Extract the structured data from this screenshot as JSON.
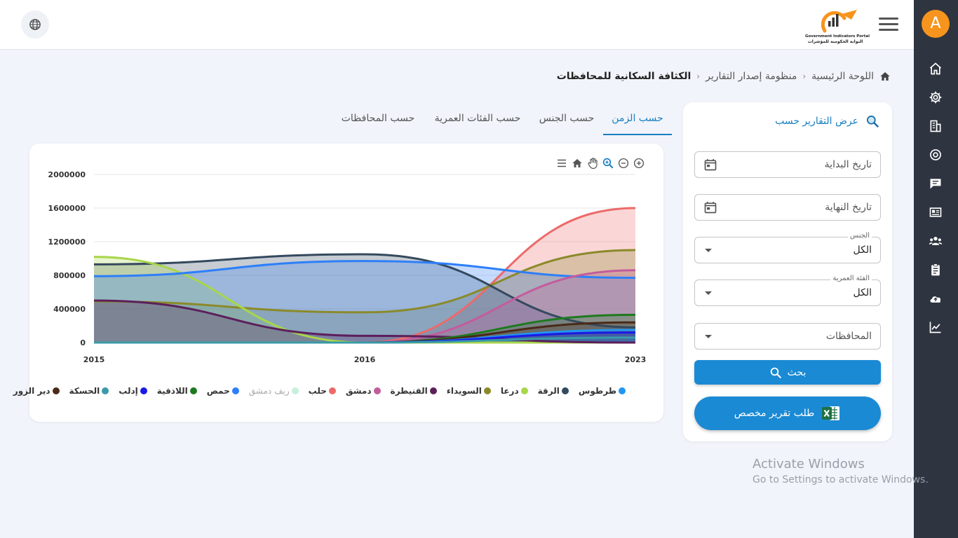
{
  "user": {
    "avatar_letter": "A"
  },
  "logo": {
    "name_en": "Government Indicators Portal",
    "name_ar": "البوابة الحكومية للمؤشرات"
  },
  "sidebar_icons": [
    "home-icon",
    "gear-icon",
    "building-icon",
    "target-icon",
    "chat-icon",
    "news-icon",
    "users-icon",
    "clipboard-icon",
    "cloud-upload-icon",
    "line-chart-icon"
  ],
  "breadcrumb": {
    "home": "اللوحة الرئيسية",
    "section": "منظومة إصدار التقارير",
    "current": "الكثافة السكانية للمحافظات"
  },
  "filters": {
    "title": "عرض التقارير حسب",
    "start_date_placeholder": "تاريخ البداية",
    "end_date_placeholder": "تاريخ النهاية",
    "gender_label": "الجنس",
    "gender_value": "الكل",
    "age_label": "الفئة العمرية",
    "age_value": "الكل",
    "governorates_placeholder": "المحافظات",
    "search_button": "بحث",
    "custom_report_button": "طلب تقرير مخصص"
  },
  "tabs": [
    {
      "label": "حسب الزمن",
      "active": true
    },
    {
      "label": "حسب الجنس",
      "active": false
    },
    {
      "label": "حسب الفئات العمرية",
      "active": false
    },
    {
      "label": "حسب المحافظات",
      "active": false
    }
  ],
  "chart_data": {
    "type": "area",
    "x": [
      "2015",
      "2016",
      "2023"
    ],
    "ylim": [
      0,
      2000000
    ],
    "yticks": [
      "2000000",
      "1600000",
      "1200000",
      "800000",
      "400000",
      "0"
    ],
    "grid": true,
    "legend_position": "bottom",
    "series": [
      {
        "name": "طرطوس",
        "color": "#2196f3",
        "values": [
          0,
          0,
          150000
        ]
      },
      {
        "name": "الرقة",
        "color": "#34495e",
        "values": [
          930000,
          1050000,
          180000
        ]
      },
      {
        "name": "درعا",
        "color": "#a8d64a",
        "values": [
          1020000,
          0,
          0
        ]
      },
      {
        "name": "السويداء",
        "color": "#8a8a2a",
        "values": [
          490000,
          360000,
          1100000
        ]
      },
      {
        "name": "القنيطرة",
        "color": "#5c1f5c",
        "values": [
          500000,
          80000,
          0
        ]
      },
      {
        "name": "دمشق",
        "color": "#c45c9c",
        "values": [
          0,
          0,
          860000
        ]
      },
      {
        "name": "حلب",
        "color": "#ec6a6a",
        "values": [
          0,
          0,
          1600000
        ]
      },
      {
        "name": "ريف دمشق",
        "color": "#c8f0dc",
        "values": [
          0,
          0,
          0
        ],
        "hidden": true
      },
      {
        "name": "حمص",
        "color": "#2d7ff9",
        "values": [
          790000,
          970000,
          770000
        ]
      },
      {
        "name": "اللاذقية",
        "color": "#1e7a1e",
        "values": [
          0,
          0,
          330000
        ]
      },
      {
        "name": "إدلب",
        "color": "#1a1ae6",
        "values": [
          0,
          0,
          120000
        ]
      },
      {
        "name": "الحسكة",
        "color": "#3a9aa8",
        "values": [
          0,
          0,
          60000
        ]
      },
      {
        "name": "دير الزور",
        "color": "#4a2a18",
        "values": [
          0,
          0,
          240000
        ]
      }
    ]
  },
  "watermark": {
    "line1": "Activate Windows",
    "line2": "Go to Settings to activate Windows."
  }
}
